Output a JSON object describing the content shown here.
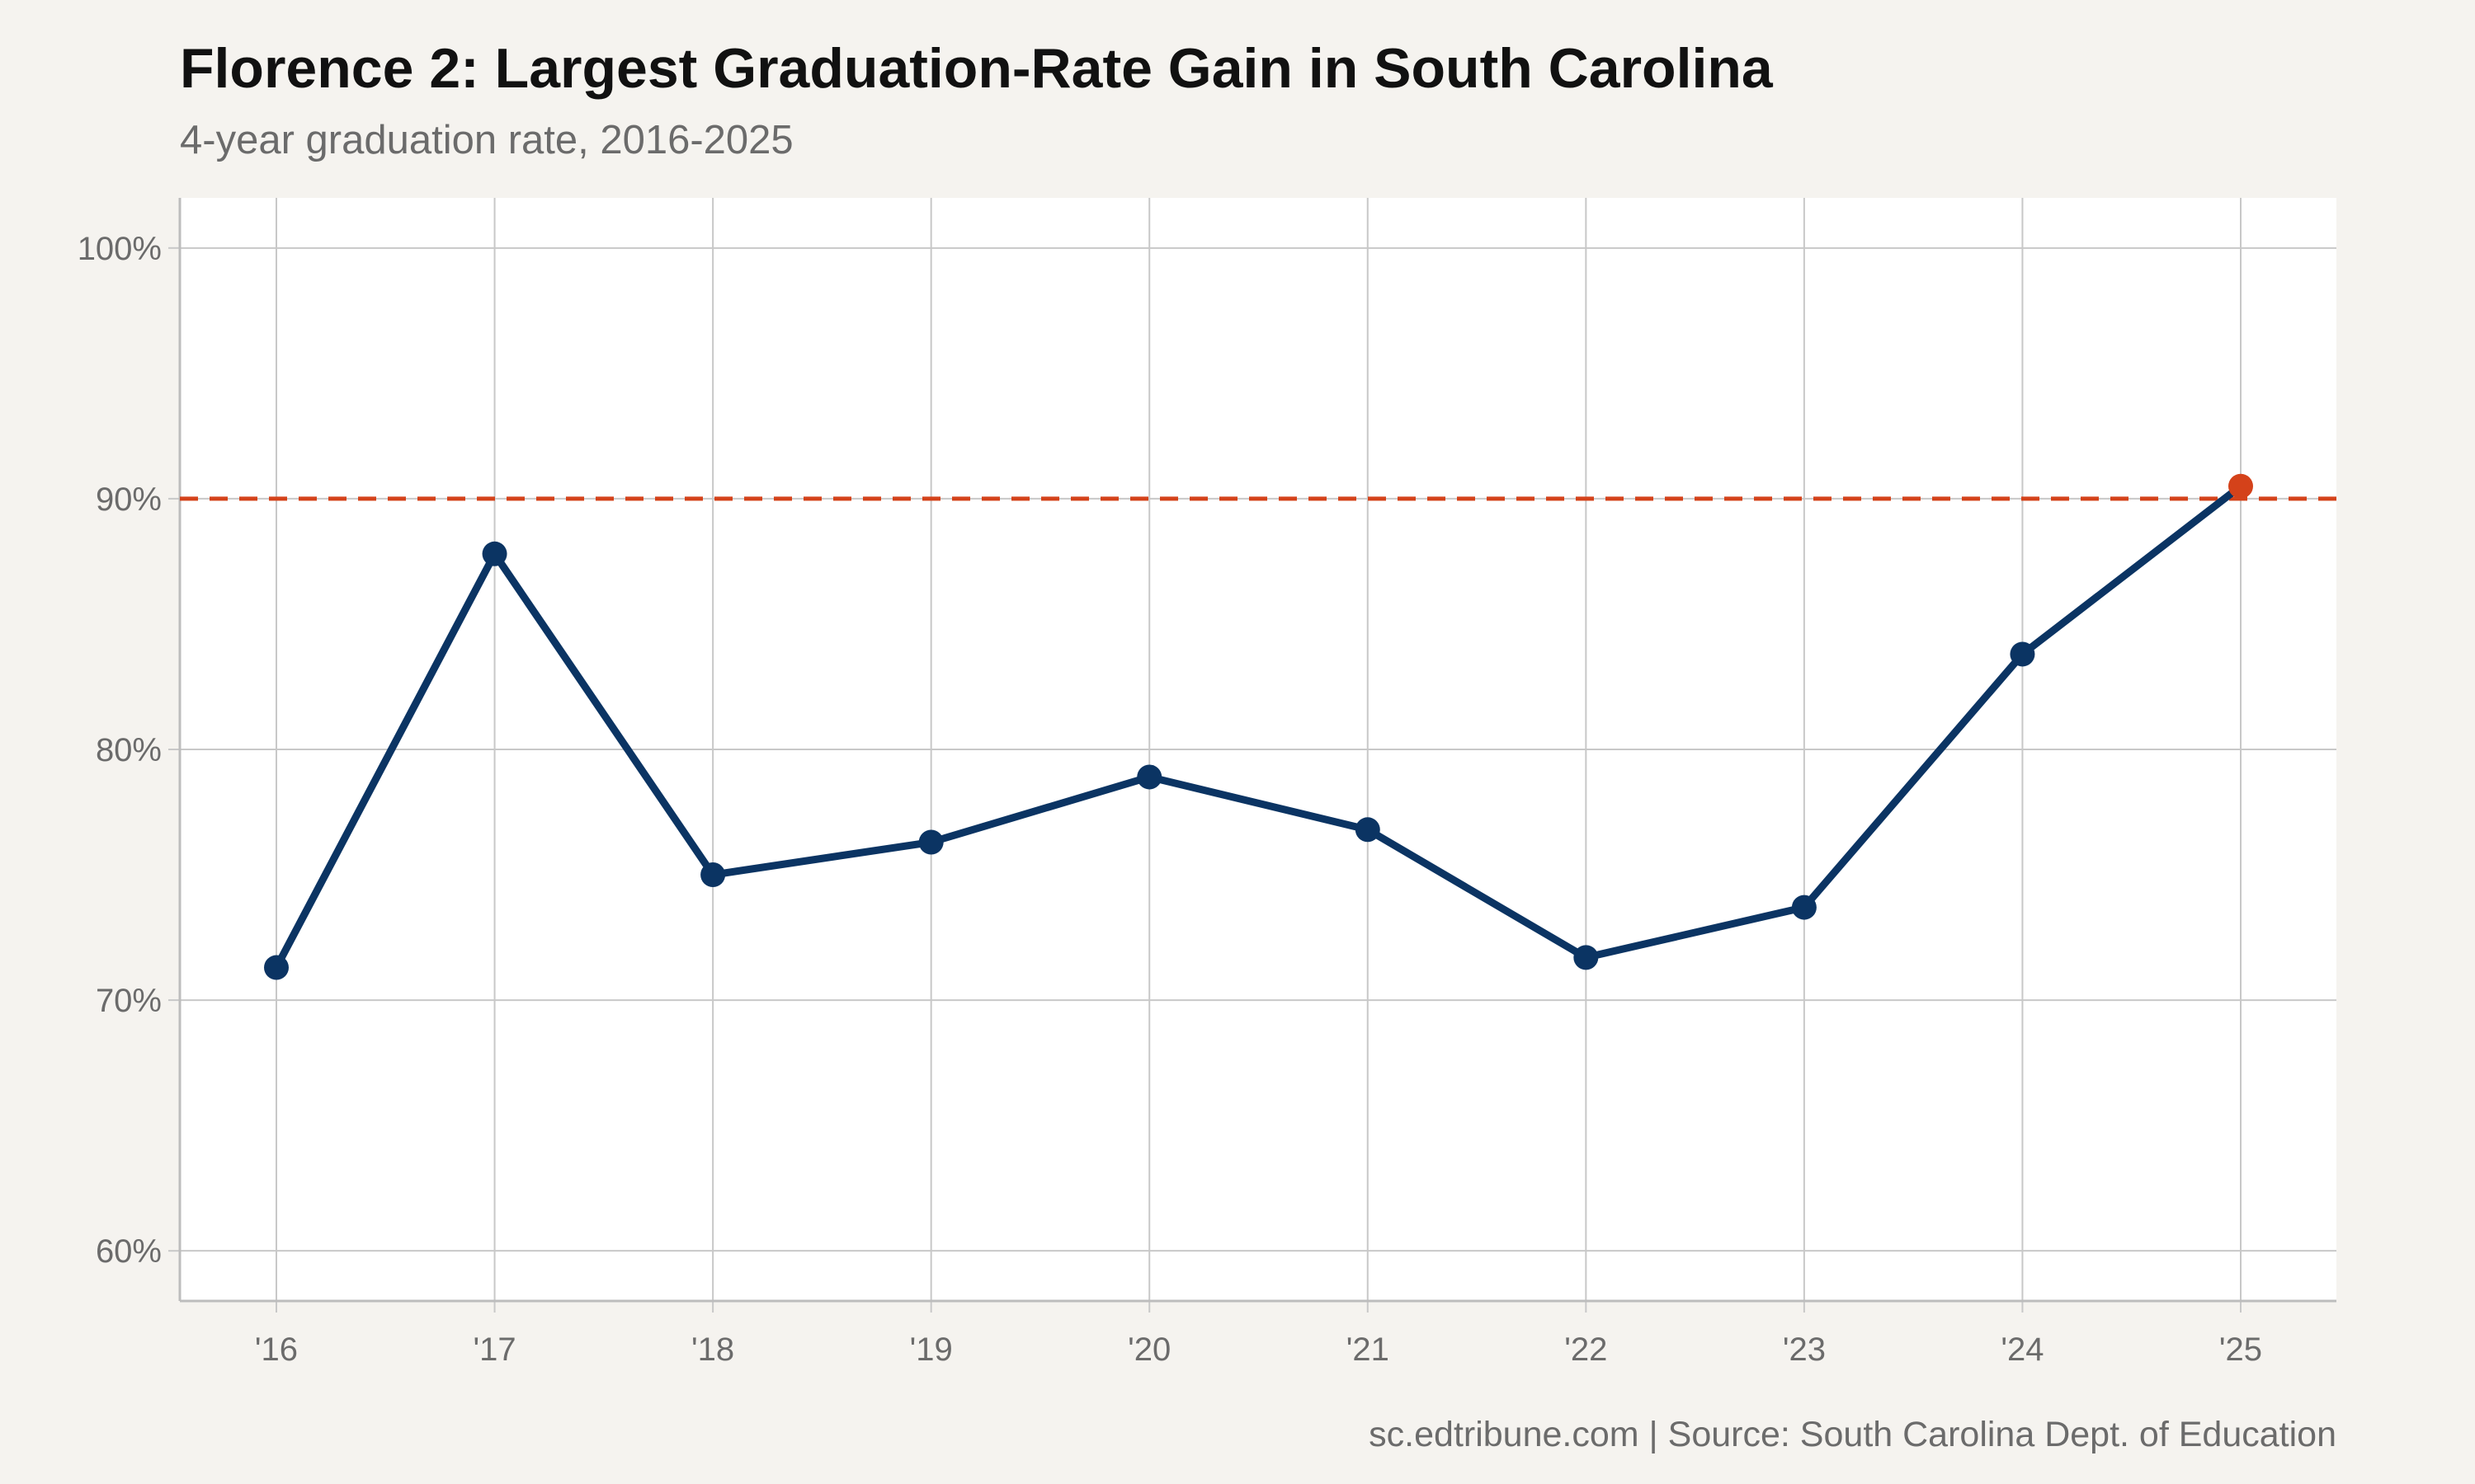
{
  "header": {
    "title": "Florence 2: Largest Graduation-Rate Gain in South Carolina",
    "subtitle": "4-year graduation rate, 2016-2025"
  },
  "footer": {
    "source": "sc.edtribune.com | Source: South Carolina Dept. of Education"
  },
  "chart_data": {
    "type": "line",
    "title": "Florence 2: Largest Graduation-Rate Gain in South Carolina",
    "subtitle": "4-year graduation rate, 2016-2025",
    "xlabel": "",
    "ylabel": "",
    "x": [
      "'16",
      "'17",
      "'18",
      "'19",
      "'20",
      "'21",
      "'22",
      "'23",
      "'24",
      "'25"
    ],
    "series": [
      {
        "values": [
          71.3,
          87.8,
          75.0,
          76.3,
          78.9,
          76.8,
          71.7,
          73.7,
          83.8,
          90.5
        ],
        "color": "#0b3463"
      }
    ],
    "highlight": {
      "index": 9,
      "color": "#d4421a"
    },
    "reference_line": {
      "y": 90,
      "color": "#d4421a",
      "style": "dashed"
    },
    "ylim": [
      58,
      102
    ],
    "yticks": [
      60,
      70,
      80,
      90,
      100
    ],
    "ytick_labels": [
      "60%",
      "70%",
      "80%",
      "90%",
      "100%"
    ],
    "grid": true,
    "plot_background": "#ffffff",
    "page_background": "#f5f3ef"
  }
}
